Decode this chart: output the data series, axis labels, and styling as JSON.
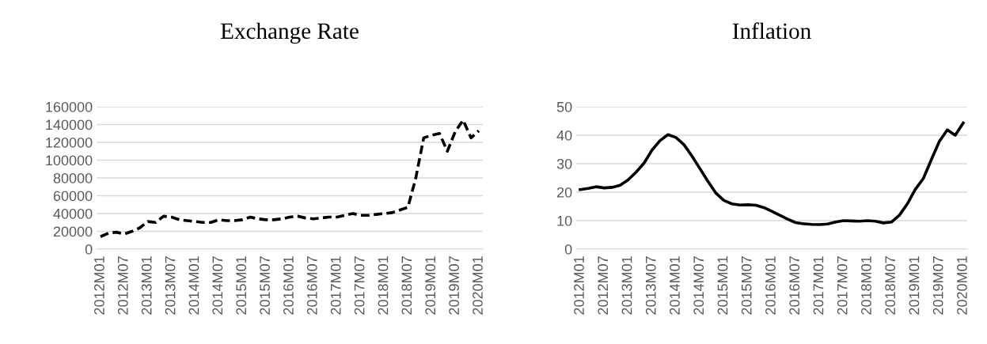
{
  "chart_data": [
    {
      "type": "line",
      "title": "Exchange Rate",
      "categories": [
        "2012M01",
        null,
        null,
        "2012M07",
        null,
        null,
        "2013M01",
        null,
        null,
        "2013M07",
        null,
        null,
        "2014M01",
        null,
        null,
        "2014M07",
        null,
        null,
        "2015M01",
        null,
        null,
        "2015M07",
        null,
        null,
        "2016M01",
        null,
        null,
        "2016M07",
        null,
        null,
        "2017M01",
        null,
        null,
        "2017M07",
        null,
        null,
        "2018M01",
        null,
        null,
        "2018M07",
        null,
        null,
        "2019M01",
        null,
        null,
        "2019M07",
        null,
        null,
        "2020M01"
      ],
      "series": [
        {
          "color": "#000000",
          "values": [
            14000,
            18000,
            19000,
            17000,
            20000,
            24000,
            31000,
            30000,
            37000,
            36000,
            33000,
            32000,
            31000,
            30000,
            30000,
            33000,
            32000,
            32000,
            33000,
            36000,
            34000,
            33000,
            33000,
            34000,
            36000,
            37000,
            35000,
            34000,
            35000,
            36000,
            36000,
            38000,
            40000,
            38000,
            38000,
            39000,
            40000,
            41000,
            44000,
            47000,
            80000,
            125000,
            128000,
            130000,
            110000,
            132000,
            145000,
            125000,
            133000
          ]
        }
      ],
      "ylim": [
        0,
        160000
      ],
      "yticks": [
        0,
        20000,
        40000,
        60000,
        80000,
        100000,
        120000,
        140000,
        160000
      ],
      "grid": "y",
      "line_style": "dashed",
      "marker": "none"
    },
    {
      "type": "line",
      "title": "Inflation",
      "categories": [
        "2012M01",
        null,
        null,
        "2012M07",
        null,
        null,
        "2013M01",
        null,
        null,
        "2013M07",
        null,
        null,
        "2014M01",
        null,
        null,
        "2014M07",
        null,
        null,
        "2015M01",
        null,
        null,
        "2015M07",
        null,
        null,
        "2016M01",
        null,
        null,
        "2016M07",
        null,
        null,
        "2017M01",
        null,
        null,
        "2017M07",
        null,
        null,
        "2018M01",
        null,
        null,
        "2018M07",
        null,
        null,
        "2019M01",
        null,
        null,
        "2019M07",
        null,
        null,
        "2020M01"
      ],
      "series": [
        {
          "color": "#000000",
          "values": [
            20.9,
            21.3,
            21.9,
            21.5,
            21.7,
            22.4,
            24.3,
            27,
            30.2,
            34.8,
            38.1,
            40.2,
            39.2,
            36.7,
            32.7,
            28.3,
            23.8,
            19.7,
            17.1,
            15.9,
            15.5,
            15.6,
            15.4,
            14.6,
            13.3,
            11.9,
            10.5,
            9.3,
            8.9,
            8.7,
            8.6,
            8.8,
            9.5,
            10.0,
            9.9,
            9.8,
            10.0,
            9.8,
            9.2,
            9.5,
            11.9,
            15.9,
            21,
            24.8,
            31.4,
            37.8,
            41.9,
            40.0,
            44.3
          ]
        }
      ],
      "ylim": [
        0,
        50
      ],
      "yticks": [
        0,
        10,
        20,
        30,
        40,
        50
      ],
      "grid": "y",
      "line_style": "solid",
      "marker": "none"
    }
  ]
}
